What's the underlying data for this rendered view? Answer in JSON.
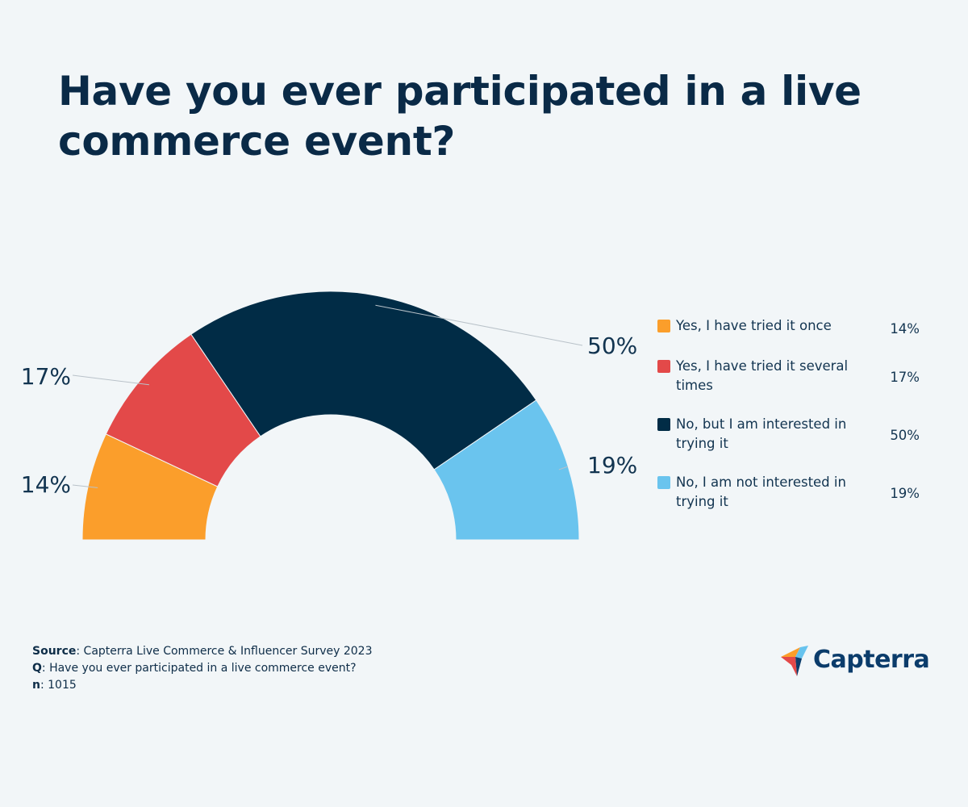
{
  "chart_data": {
    "type": "pie",
    "variant": "half-donut",
    "title": "Have you ever participated in a live commerce event?",
    "categories": [
      "Yes, I have tried it once",
      "Yes, I have tried it several times",
      "No, but I am interested in trying it",
      "No, I am not interested in trying it"
    ],
    "values": [
      14,
      17,
      50,
      19
    ],
    "labels": [
      "14%",
      "17%",
      "50%",
      "19%"
    ],
    "colors": [
      "#fb9e2b",
      "#e34949",
      "#012c46",
      "#6ac4ee"
    ],
    "legend": "right"
  },
  "footer": {
    "source_label": "Source",
    "source_text": ": Capterra Live Commerce & Influencer Survey 2023",
    "q_label": "Q",
    "q_text": ": Have you ever participated in a live commerce event?",
    "n_label": "n",
    "n_text": ": 1015"
  },
  "logo": {
    "text": "Capterra"
  }
}
